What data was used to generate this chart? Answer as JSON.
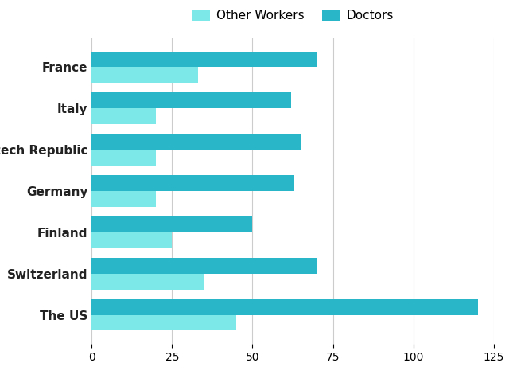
{
  "categories": [
    "France",
    "Italy",
    "Czech Republic",
    "Germany",
    "Finland",
    "Switzerland",
    "The US"
  ],
  "other_workers": [
    33,
    20,
    20,
    20,
    25,
    35,
    45
  ],
  "doctors": [
    70,
    62,
    65,
    63,
    50,
    70,
    120
  ],
  "other_workers_color": "#7de8e8",
  "doctors_color": "#29b6c8",
  "legend_labels": [
    "Other Workers",
    "Doctors"
  ],
  "xlim": [
    0,
    125
  ],
  "xticks": [
    0,
    25,
    50,
    75,
    100,
    125
  ],
  "background_color": "#ffffff",
  "bar_height": 0.38,
  "grid_color": "#cccccc",
  "label_fontsize": 11,
  "tick_fontsize": 10
}
